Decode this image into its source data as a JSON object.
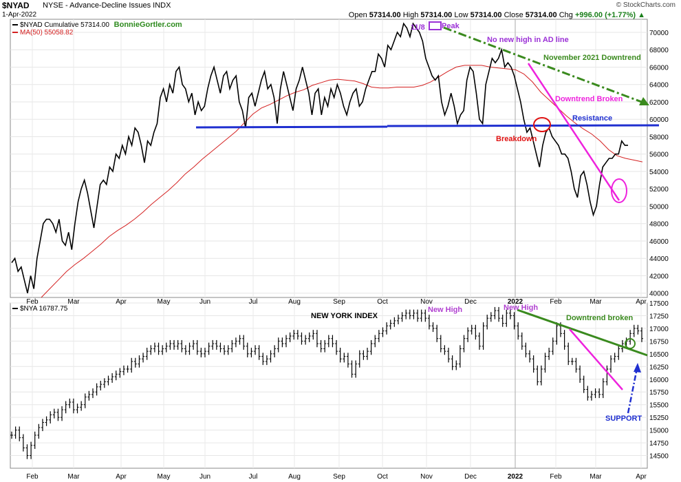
{
  "header": {
    "symbol": "$NYAD",
    "description": "NYSE - Advance-Decline Issues  INDX",
    "date": "1-Apr-2022",
    "watermark": "© StockCharts.com",
    "open_label": "Open",
    "open": "57314.00",
    "high_label": "High",
    "high": "57314.00",
    "low_label": "Low",
    "low": "57314.00",
    "close_label": "Close",
    "close": "57314.00",
    "chg_label": "Chg",
    "chg": "+996.00 (+1.77%)",
    "chg_icon": "up-triangle-icon"
  },
  "chart_data": [
    {
      "type": "line",
      "panel": "top",
      "ylim": [
        39500,
        71500
      ],
      "yticks": [
        40000,
        42000,
        44000,
        46000,
        48000,
        50000,
        52000,
        54000,
        56000,
        58000,
        60000,
        62000,
        64000,
        66000,
        68000,
        70000
      ],
      "xticks": [
        "Feb",
        "Mar",
        "Apr",
        "May",
        "Jun",
        "Jul",
        "Aug",
        "Sep",
        "Oct",
        "Nov",
        "Dec",
        "2022",
        "Feb",
        "Mar",
        "Apr"
      ],
      "grid": true,
      "legend": {
        "position": "top-left",
        "entries": [
          "$NYAD Cumulative 57314.00",
          "MA(50) 55058.82"
        ],
        "brand": "BonnieGortler.com"
      },
      "series": [
        {
          "name": "$NYAD Cumulative",
          "color": "#000000",
          "values": [
            43500,
            44000,
            42500,
            43000,
            41500,
            40000,
            42000,
            40500,
            44000,
            46000,
            48000,
            48500,
            48500,
            48000,
            47000,
            48500,
            46000,
            45500,
            47000,
            45000,
            48000,
            50500,
            52000,
            53000,
            51500,
            49500,
            47500,
            50000,
            52500,
            53000,
            52500,
            54500,
            54000,
            56000,
            55500,
            57000,
            56000,
            58000,
            57000,
            59000,
            58500,
            57000,
            55000,
            57500,
            57000,
            58500,
            59500,
            62500,
            63500,
            62000,
            64000,
            63000,
            65500,
            66000,
            64000,
            63500,
            62000,
            63000,
            60500,
            62000,
            61000,
            61500,
            63500,
            65000,
            66000,
            64500,
            63000,
            65000,
            65500,
            63500,
            64500,
            65000,
            62000,
            61000,
            59000,
            62500,
            63000,
            61500,
            63000,
            64500,
            65500,
            63500,
            64000,
            62500,
            59500,
            63500,
            65500,
            64000,
            62500,
            61000,
            63500,
            64500,
            66000,
            64500,
            63000,
            60500,
            63000,
            63500,
            60500,
            62500,
            61500,
            63500,
            62500,
            64000,
            63000,
            61500,
            60500,
            62000,
            63000,
            63500,
            61500,
            62000,
            63500,
            64500,
            65500,
            65500,
            67500,
            67000,
            66000,
            68500,
            68000,
            69000,
            70000,
            69500,
            71000,
            70500,
            69500,
            71000,
            70500,
            70000,
            69000,
            67000,
            66000,
            65000,
            64500,
            65000,
            62000,
            60500,
            61500,
            63000,
            61500,
            59500,
            60500,
            61000,
            64500,
            66000,
            65500,
            63000,
            60000,
            59500,
            64000,
            65500,
            67000,
            66500,
            67000,
            68000,
            66000,
            66500,
            66000,
            65000,
            63500,
            62000,
            60000,
            58500,
            59000,
            57500,
            56000,
            54500,
            57000,
            58500,
            59000,
            58000,
            57500,
            57000,
            56000,
            56000,
            55500,
            54000,
            52000,
            51000,
            53500,
            54000,
            52500,
            50500,
            49000,
            50000,
            52500,
            54500,
            55000,
            55500,
            55500,
            56000,
            56000,
            57500,
            57000,
            57000
          ]
        },
        {
          "name": "MA(50)",
          "color": "#d42020",
          "values": [
            39500,
            40500,
            41500,
            42500,
            43300,
            44000,
            44800,
            45600,
            46500,
            47200,
            47800,
            48500,
            49300,
            50200,
            51000,
            51800,
            52700,
            53700,
            54500,
            55400,
            56200,
            57000,
            57800,
            58600,
            59600,
            60600,
            61300,
            61700,
            62200,
            62700,
            63100,
            63400,
            63900,
            64200,
            64500,
            64600,
            64500,
            64400,
            64100,
            63700,
            63600,
            63600,
            63700,
            63700,
            63700,
            63900,
            64300,
            64900,
            65500,
            66000,
            66200,
            66200,
            66200,
            66000,
            65900,
            65800,
            65700,
            65200,
            64300,
            63100,
            62200,
            61300,
            60400,
            59600,
            58900,
            58300,
            57500,
            56500,
            55800,
            55500,
            55300,
            55100
          ]
        }
      ],
      "annotations": {
        "peak_date": "11/8",
        "peak": "Peak",
        "no_new_high": "No new high in AD line",
        "downtrend_nov": "November 2021  Downtrend",
        "downtrend_broken": "Downtrend Broken",
        "resistance": "Resistance",
        "breakdown": "Breakdown"
      }
    },
    {
      "type": "ohlc",
      "panel": "bottom",
      "title": "NEW YORK INDEX",
      "ylim": [
        14250,
        17500
      ],
      "yticks": [
        14500,
        14750,
        15000,
        15250,
        15500,
        15750,
        16000,
        16250,
        16500,
        16750,
        17000,
        17250,
        17500
      ],
      "xticks": [
        "Feb",
        "Mar",
        "Apr",
        "May",
        "Jun",
        "Jul",
        "Aug",
        "Sep",
        "Oct",
        "Nov",
        "Dec",
        "2022",
        "Feb",
        "Mar",
        "Apr"
      ],
      "grid": true,
      "legend": {
        "position": "top-left",
        "entries": [
          "$NYA 16787.75"
        ]
      },
      "series": [
        {
          "name": "$NYA",
          "color": "#000000",
          "values": [
            14900,
            15000,
            14850,
            14650,
            14500,
            14700,
            14900,
            15050,
            15150,
            15200,
            15300,
            15350,
            15250,
            15400,
            15500,
            15550,
            15400,
            15450,
            15500,
            15650,
            15700,
            15750,
            15850,
            15900,
            15950,
            16000,
            16050,
            16100,
            16150,
            16200,
            16200,
            16350,
            16300,
            16400,
            16450,
            16550,
            16600,
            16650,
            16550,
            16600,
            16650,
            16700,
            16650,
            16700,
            16600,
            16550,
            16650,
            16700,
            16550,
            16500,
            16550,
            16650,
            16700,
            16650,
            16600,
            16550,
            16600,
            16700,
            16750,
            16800,
            16650,
            16500,
            16550,
            16600,
            16450,
            16350,
            16400,
            16500,
            16600,
            16750,
            16700,
            16800,
            16850,
            16900,
            16850,
            16750,
            16800,
            16850,
            16900,
            16700,
            16600,
            16700,
            16800,
            16700,
            16550,
            16400,
            16450,
            16300,
            16100,
            16300,
            16500,
            16450,
            16550,
            16700,
            16800,
            16900,
            16950,
            17050,
            17100,
            17150,
            17200,
            17250,
            17300,
            17250,
            17300,
            17200,
            17300,
            17200,
            17050,
            17000,
            16800,
            16600,
            16550,
            16400,
            16250,
            16300,
            16600,
            16800,
            16950,
            17000,
            16850,
            16650,
            17050,
            17200,
            17250,
            17350,
            17200,
            17100,
            17300,
            17250,
            17050,
            16850,
            16650,
            16500,
            16400,
            16200,
            15950,
            16200,
            16450,
            16550,
            16750,
            17050,
            16900,
            16650,
            16350,
            16350,
            16200,
            16000,
            15800,
            15650,
            15700,
            15750,
            15700,
            15950,
            16200,
            16400,
            16450,
            16600,
            16700,
            16750,
            16900,
            17000,
            16950,
            16800
          ]
        }
      ],
      "annotations": {
        "new_high_1": "New High",
        "new_high_2": "New High",
        "downtrend_broken": "Downtrend broken",
        "support": "SUPPORT"
      }
    }
  ]
}
